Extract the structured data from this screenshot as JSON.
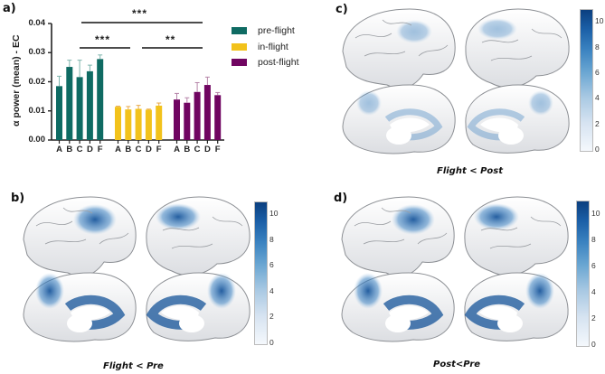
{
  "panels": {
    "a": {
      "label": "a)"
    },
    "b": {
      "label": "b)",
      "caption": "Flight < Pre"
    },
    "c": {
      "label": "c)",
      "caption": "Flight < Post"
    },
    "d": {
      "label": "d)",
      "caption": "Post<Pre"
    }
  },
  "colorbar": {
    "ticks": [
      "0",
      "2",
      "4",
      "6",
      "8",
      "10"
    ],
    "min": 0,
    "max": 11,
    "colors": [
      "#f4f8fc",
      "#0b3f7f"
    ]
  },
  "colors": {
    "pre_flight": "#0f6b63",
    "in_flight": "#f2c21b",
    "post_flight": "#700561",
    "brain_surface": "#f2f3f5",
    "activation": "#1a5ea6"
  },
  "chart_data": [
    {
      "type": "bar",
      "title": "",
      "xlabel": "",
      "ylabel": "α power (mean) - EC",
      "ylim": [
        0,
        0.04
      ],
      "yticks": [
        "0.00",
        "0.01",
        "0.02",
        "0.03",
        "0.04"
      ],
      "categories": [
        "A",
        "B",
        "C",
        "D",
        "F"
      ],
      "grid": false,
      "legend_position": "right",
      "series": [
        {
          "name": "pre-flight",
          "color": "#0f6b63",
          "values": [
            0.0185,
            0.0251,
            0.0216,
            0.0236,
            0.0278
          ],
          "errors": [
            0.0034,
            0.0023,
            0.0058,
            0.0021,
            0.0014
          ]
        },
        {
          "name": "in-flight",
          "color": "#f2c21b",
          "values": [
            0.0114,
            0.0105,
            0.0107,
            0.0104,
            0.0118
          ],
          "errors": [
            0.0002,
            0.001,
            0.0012,
            0.0002,
            0.0009
          ]
        },
        {
          "name": "post-flight",
          "color": "#700561",
          "values": [
            0.0139,
            0.0128,
            0.0165,
            0.0189,
            0.0154
          ],
          "errors": [
            0.0021,
            0.0017,
            0.0032,
            0.0027,
            0.0009
          ]
        }
      ],
      "annotations": [
        {
          "text": "***",
          "from": "pre-flight C",
          "to": "post-flight D",
          "level": "top"
        },
        {
          "text": "***",
          "from": "pre-flight C",
          "to": "in-flight B"
        },
        {
          "text": "**",
          "from": "in-flight D",
          "to": "post-flight D"
        }
      ]
    },
    {
      "type": "heatmap",
      "title": "Flight < Pre",
      "panel": "b",
      "colorbar_range": [
        0,
        11
      ],
      "colorbar_ticks": [
        0,
        2,
        4,
        6,
        8,
        10
      ],
      "description": "Brain surface maps (lateral and medial views, both hemispheres); strongest effects in parietal and medial posterior regions"
    },
    {
      "type": "heatmap",
      "title": "Flight < Post",
      "panel": "c",
      "colorbar_range": [
        0,
        11
      ],
      "colorbar_ticks": [
        0,
        2,
        4,
        6,
        8,
        10
      ],
      "description": "Brain surface maps with weaker, diffuse effects"
    },
    {
      "type": "heatmap",
      "title": "Post<Pre",
      "panel": "d",
      "colorbar_range": [
        0,
        11
      ],
      "colorbar_ticks": [
        0,
        2,
        4,
        6,
        8,
        10
      ],
      "description": "Brain surface maps; strong parietal and medial posterior effects similar to panel b"
    }
  ]
}
